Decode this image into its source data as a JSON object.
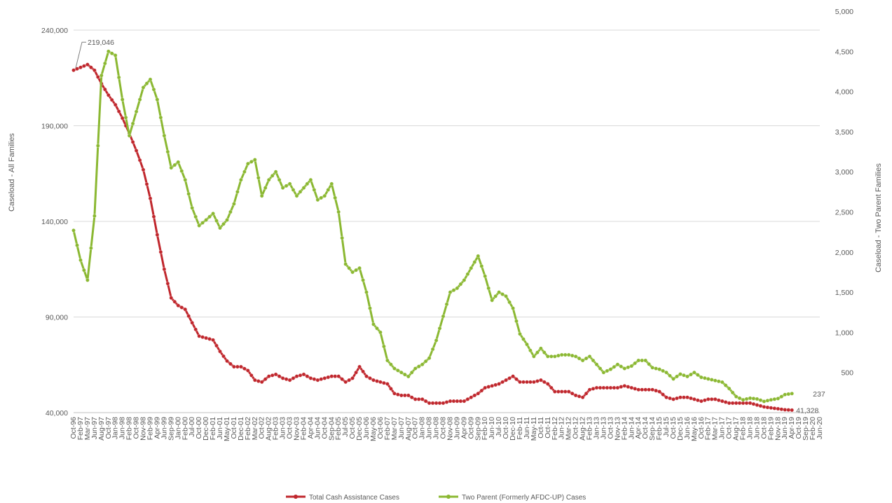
{
  "chart_data": {
    "type": "line",
    "title": "",
    "ylabel_left": "Caseload - All Families",
    "ylabel_right": "Caseload - Two Parent Families",
    "ylim_left": [
      40000,
      240000
    ],
    "ylim_right": [
      0,
      5000
    ],
    "yticks_left": [
      "40,000",
      "90,000",
      "140,000",
      "190,000",
      "240,000"
    ],
    "yticks_right": [
      "",
      "500",
      "1,000",
      "1,500",
      "2,000",
      "2,500",
      "3,000",
      "3,500",
      "4,000",
      "4,500",
      "5,000"
    ],
    "grid": true,
    "legend_position": "bottom",
    "x_labels": [
      "Oct-96",
      "Feb-97",
      "Mar-97",
      "Jun-97",
      "Aug-97",
      "Oct-97",
      "Jan-98",
      "Jun-98",
      "Feb-98",
      "Oct-98",
      "Nov-98",
      "Feb-99",
      "Apr-99",
      "Jun-99",
      "Sep-99",
      "Jan-00",
      "Feb-00",
      "Jul-00",
      "Oct-00",
      "Dec-00",
      "Feb-01",
      "Jun-01",
      "May-01",
      "Oct-01",
      "Dec-01",
      "Feb-02",
      "Mar-02",
      "Oct-02",
      "Aug-02",
      "Feb-03",
      "Jun-03",
      "Oct-03",
      "Nov-03",
      "Feb-04",
      "Apr-04",
      "Jun-04",
      "Oct-04",
      "Sep-04",
      "Feb-05",
      "Jul-05",
      "Oct-05",
      "Dec-05",
      "Jun-06",
      "May-06",
      "Oct-06",
      "Feb-07",
      "Mar-07",
      "Jun-07",
      "Aug-07",
      "Oct-07",
      "Jan-08",
      "Jun-08",
      "Jun-08",
      "Oct-08",
      "Nov-08",
      "Jun-09",
      "Apr-09",
      "Oct-09",
      "Sep-09",
      "Feb-10",
      "Jun-10",
      "Jul-10",
      "Oct-10",
      "Dec-10",
      "Feb-11",
      "Jun-11",
      "May-11",
      "Oct-11",
      "Oct-11",
      "Feb-12",
      "Jun-12",
      "Mar-12",
      "Oct-12",
      "Aug-12",
      "Feb-13",
      "Jan-13",
      "Jun-13",
      "Oct-13",
      "Nov-13",
      "Feb-14",
      "Jun-14",
      "Apr-14",
      "Oct-14",
      "Sep-14",
      "Feb-15",
      "Jul-15",
      "Oct-15",
      "Dec-15",
      "Jun-16",
      "May-16",
      "Oct-16",
      "Feb-17",
      "Mar-17",
      "Jun-17",
      "Oct-17",
      "Aug-17",
      "Feb-18",
      "Jun-18",
      "Jun-18",
      "Oct-18",
      "Feb-19",
      "Nov-18",
      "Jun-19",
      "Apr-19",
      "Oct-19",
      "Sep-19",
      "Feb-20",
      "Jun-20"
    ],
    "series": [
      {
        "name": "Total Cash Assistance Cases",
        "axis": "left",
        "color": "#c0272d",
        "anchors": [
          [
            0,
            219046
          ],
          [
            1,
            220500
          ],
          [
            2,
            222000
          ],
          [
            3,
            219000
          ],
          [
            4,
            212000
          ],
          [
            5,
            206000
          ],
          [
            6,
            201000
          ],
          [
            7,
            194000
          ],
          [
            8,
            186000
          ],
          [
            9,
            177000
          ],
          [
            10,
            167000
          ],
          [
            11,
            152000
          ],
          [
            12,
            133000
          ],
          [
            13,
            115000
          ],
          [
            14,
            100000
          ],
          [
            15,
            96000
          ],
          [
            16,
            94000
          ],
          [
            17,
            87000
          ],
          [
            18,
            80000
          ],
          [
            19,
            79000
          ],
          [
            20,
            78000
          ],
          [
            21,
            72000
          ],
          [
            22,
            67000
          ],
          [
            23,
            64000
          ],
          [
            24,
            64000
          ],
          [
            25,
            62000
          ],
          [
            26,
            57000
          ],
          [
            27,
            56000
          ],
          [
            28,
            59000
          ],
          [
            29,
            60000
          ],
          [
            30,
            58000
          ],
          [
            31,
            57000
          ],
          [
            32,
            59000
          ],
          [
            33,
            60000
          ],
          [
            34,
            58000
          ],
          [
            35,
            57000
          ],
          [
            36,
            58000
          ],
          [
            37,
            59000
          ],
          [
            38,
            59000
          ],
          [
            39,
            56000
          ],
          [
            40,
            58000
          ],
          [
            41,
            64000
          ],
          [
            42,
            59000
          ],
          [
            43,
            57000
          ],
          [
            44,
            56000
          ],
          [
            45,
            55000
          ],
          [
            46,
            50000
          ],
          [
            47,
            49000
          ],
          [
            48,
            49000
          ],
          [
            49,
            47000
          ],
          [
            50,
            47000
          ],
          [
            51,
            45000
          ],
          [
            52,
            45000
          ],
          [
            53,
            45000
          ],
          [
            54,
            46000
          ],
          [
            55,
            46000
          ],
          [
            56,
            46000
          ],
          [
            57,
            48000
          ],
          [
            58,
            50000
          ],
          [
            59,
            53000
          ],
          [
            60,
            54000
          ],
          [
            61,
            55000
          ],
          [
            62,
            57000
          ],
          [
            63,
            59000
          ],
          [
            64,
            56000
          ],
          [
            65,
            56000
          ],
          [
            66,
            56000
          ],
          [
            67,
            57000
          ],
          [
            68,
            55000
          ],
          [
            69,
            51000
          ],
          [
            70,
            51000
          ],
          [
            71,
            51000
          ],
          [
            72,
            49000
          ],
          [
            73,
            48000
          ],
          [
            74,
            52000
          ],
          [
            75,
            53000
          ],
          [
            76,
            53000
          ],
          [
            77,
            53000
          ],
          [
            78,
            53000
          ],
          [
            79,
            54000
          ],
          [
            80,
            53000
          ],
          [
            81,
            52000
          ],
          [
            82,
            52000
          ],
          [
            83,
            52000
          ],
          [
            84,
            51000
          ],
          [
            85,
            48000
          ],
          [
            86,
            47000
          ],
          [
            87,
            48000
          ],
          [
            88,
            48000
          ],
          [
            89,
            47000
          ],
          [
            90,
            46000
          ],
          [
            91,
            47000
          ],
          [
            92,
            47000
          ],
          [
            93,
            46000
          ],
          [
            94,
            45000
          ],
          [
            95,
            45000
          ],
          [
            96,
            45000
          ],
          [
            97,
            45000
          ],
          [
            98,
            44000
          ],
          [
            99,
            43000
          ],
          [
            100,
            42500
          ],
          [
            101,
            42000
          ],
          [
            102,
            41500
          ],
          [
            103,
            41328
          ]
        ],
        "labeled_points": [
          {
            "index": 0,
            "label": "219,046"
          },
          {
            "index": 103,
            "label": "41,328"
          }
        ]
      },
      {
        "name": "Two Parent (Formerly AFDC-UP) Cases",
        "axis": "right",
        "color": "#8bb832",
        "anchors": [
          [
            0,
            2270
          ],
          [
            1,
            1900
          ],
          [
            2,
            1650
          ],
          [
            3,
            2450
          ],
          [
            4,
            4200
          ],
          [
            5,
            4500
          ],
          [
            6,
            4450
          ],
          [
            7,
            3900
          ],
          [
            8,
            3450
          ],
          [
            9,
            3750
          ],
          [
            10,
            4050
          ],
          [
            11,
            4150
          ],
          [
            12,
            3900
          ],
          [
            13,
            3450
          ],
          [
            14,
            3050
          ],
          [
            15,
            3120
          ],
          [
            16,
            2900
          ],
          [
            17,
            2550
          ],
          [
            18,
            2330
          ],
          [
            19,
            2400
          ],
          [
            20,
            2480
          ],
          [
            21,
            2300
          ],
          [
            22,
            2400
          ],
          [
            23,
            2600
          ],
          [
            24,
            2900
          ],
          [
            25,
            3100
          ],
          [
            26,
            3150
          ],
          [
            27,
            2700
          ],
          [
            28,
            2900
          ],
          [
            29,
            3000
          ],
          [
            30,
            2800
          ],
          [
            31,
            2850
          ],
          [
            32,
            2700
          ],
          [
            33,
            2800
          ],
          [
            34,
            2900
          ],
          [
            35,
            2650
          ],
          [
            36,
            2700
          ],
          [
            37,
            2850
          ],
          [
            38,
            2500
          ],
          [
            39,
            1850
          ],
          [
            40,
            1750
          ],
          [
            41,
            1800
          ],
          [
            42,
            1500
          ],
          [
            43,
            1100
          ],
          [
            44,
            1000
          ],
          [
            45,
            650
          ],
          [
            46,
            550
          ],
          [
            47,
            500
          ],
          [
            48,
            450
          ],
          [
            49,
            550
          ],
          [
            50,
            600
          ],
          [
            51,
            680
          ],
          [
            52,
            900
          ],
          [
            53,
            1200
          ],
          [
            54,
            1500
          ],
          [
            55,
            1550
          ],
          [
            56,
            1650
          ],
          [
            57,
            1800
          ],
          [
            58,
            1950
          ],
          [
            59,
            1700
          ],
          [
            60,
            1400
          ],
          [
            61,
            1500
          ],
          [
            62,
            1450
          ],
          [
            63,
            1300
          ],
          [
            64,
            980
          ],
          [
            65,
            850
          ],
          [
            66,
            700
          ],
          [
            67,
            800
          ],
          [
            68,
            700
          ],
          [
            69,
            700
          ],
          [
            70,
            720
          ],
          [
            71,
            720
          ],
          [
            72,
            700
          ],
          [
            73,
            650
          ],
          [
            74,
            700
          ],
          [
            75,
            600
          ],
          [
            76,
            500
          ],
          [
            77,
            540
          ],
          [
            78,
            600
          ],
          [
            79,
            550
          ],
          [
            80,
            580
          ],
          [
            81,
            650
          ],
          [
            82,
            650
          ],
          [
            83,
            560
          ],
          [
            84,
            540
          ],
          [
            85,
            500
          ],
          [
            86,
            420
          ],
          [
            87,
            480
          ],
          [
            88,
            450
          ],
          [
            89,
            500
          ],
          [
            90,
            440
          ],
          [
            91,
            420
          ],
          [
            92,
            400
          ],
          [
            93,
            380
          ],
          [
            94,
            300
          ],
          [
            95,
            200
          ],
          [
            96,
            160
          ],
          [
            97,
            180
          ],
          [
            98,
            170
          ],
          [
            99,
            140
          ],
          [
            100,
            160
          ],
          [
            101,
            175
          ],
          [
            102,
            225
          ],
          [
            103,
            237
          ]
        ],
        "labeled_points": [
          {
            "index": 103,
            "label": "237"
          }
        ]
      }
    ]
  }
}
